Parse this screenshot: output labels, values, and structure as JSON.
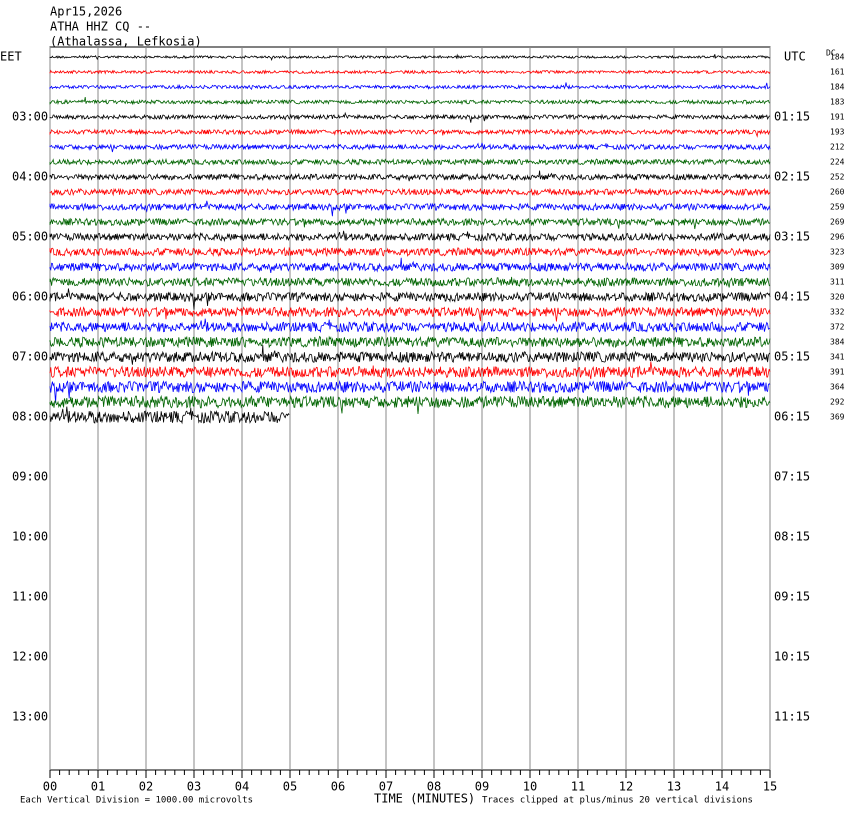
{
  "chart_data": {
    "type": "helicorder",
    "title": [
      "Apr15,2026",
      "ATHA HHZ CQ --",
      "(Athalassa, Lefkosia)"
    ],
    "left_zone": "EET",
    "right_zone": "UTC",
    "dc_header": "DC",
    "left_labels": [
      "03:00",
      "04:00",
      "05:00",
      "06:00",
      "07:00",
      "08:00",
      "09:00",
      "10:00",
      "11:00",
      "12:00",
      "13:00"
    ],
    "right_labels": [
      "01:15",
      "02:15",
      "03:15",
      "04:15",
      "05:15",
      "06:15",
      "07:15",
      "08:15",
      "09:15",
      "10:15",
      "11:15"
    ],
    "colors": [
      "#000000",
      "#ff0000",
      "#0000ff",
      "#006400"
    ],
    "dc": [
      "184",
      "161",
      "184",
      "183",
      "191",
      "193",
      "212",
      "224",
      "252",
      "260",
      "259",
      "269",
      "296",
      "323",
      "309",
      "311",
      "320",
      "332",
      "372",
      "384",
      "341",
      "391",
      "364",
      "292",
      "369"
    ],
    "partial_trace_end": 5,
    "xlim": [
      0,
      15
    ],
    "xticks": [
      {
        "value": 0,
        "label": "00"
      },
      {
        "value": 1,
        "label": "01"
      },
      {
        "value": 2,
        "label": "02"
      },
      {
        "value": 3,
        "label": "03"
      },
      {
        "value": 4,
        "label": "04"
      },
      {
        "value": 5,
        "label": "05"
      },
      {
        "value": 6,
        "label": "06"
      },
      {
        "value": 7,
        "label": "07"
      },
      {
        "value": 8,
        "label": "08"
      },
      {
        "value": 9,
        "label": "09"
      },
      {
        "value": 10,
        "label": "10"
      },
      {
        "value": 11,
        "label": "11"
      },
      {
        "value": 12,
        "label": "12"
      },
      {
        "value": 13,
        "label": "13"
      },
      {
        "value": 14,
        "label": "14"
      },
      {
        "value": 15,
        "label": "15"
      }
    ],
    "xlabel": "TIME (MINUTES)",
    "note_left": "Each Vertical Division = 1000.00 microvolts",
    "note_right": "Traces clipped at plus/minus 20 vertical divisions"
  }
}
